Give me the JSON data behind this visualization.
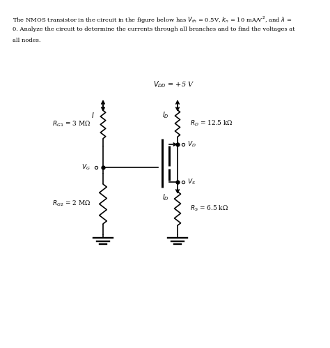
{
  "background_color": "#ffffff",
  "text_color": "#000000",
  "vdd_label": "$V_{DD}$ = +5 V",
  "rg1_label": "$R_{G1}$ = 3 MΩ",
  "rg2_label": "$R_{G2}$ = 2 MΩ",
  "rd_label": "$R_D$ = 12.5 kΩ",
  "rs_label": "$R_S$ = 6.5 kΩ",
  "vg_label": "$V_G$",
  "vd_label": "$V_D$",
  "vs_label": "$V_S$",
  "id_label_top": "$I_D$",
  "id_label_bot": "$I_D$",
  "i_label": "$I$",
  "line_color": "#000000",
  "wire_lw": 1.2,
  "problem_line1": "The NMOS transistor in the circuit in the figure below has $V_{th}$ = 0.5V, $k_n$ = 10 mA/V$^2$, and $\\lambda$ =",
  "problem_line2": "0. Analyze the circuit to determine the currents through all branches and to find the voltages at",
  "problem_line3": "all nodes."
}
